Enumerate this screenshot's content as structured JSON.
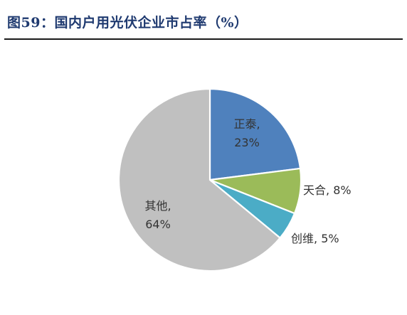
{
  "header": {
    "title": "图59：国内户用光伏企业市占率（%）"
  },
  "chart_data": {
    "type": "pie",
    "start_angle_deg": 0,
    "direction": "clockwise",
    "slices": [
      {
        "name": "正泰",
        "value": 23,
        "label_name": "正泰,",
        "label_value": "23%",
        "color": "#4f81bd",
        "label_position": "inside",
        "label_color": "#333333"
      },
      {
        "name": "天合",
        "value": 8,
        "label_name": "天合,",
        "label_value": "8%",
        "color": "#9bbb59",
        "label_position": "outside",
        "label_color": "#333333"
      },
      {
        "name": "创维",
        "value": 5,
        "label_name": "创维,",
        "label_value": "5%",
        "color": "#4bacc6",
        "label_position": "outside",
        "label_color": "#333333"
      },
      {
        "name": "其他",
        "value": 64,
        "label_name": "其他,",
        "label_value": "64%",
        "color": "#c0c0c0",
        "label_position": "inside",
        "label_color": "#333333"
      }
    ]
  }
}
